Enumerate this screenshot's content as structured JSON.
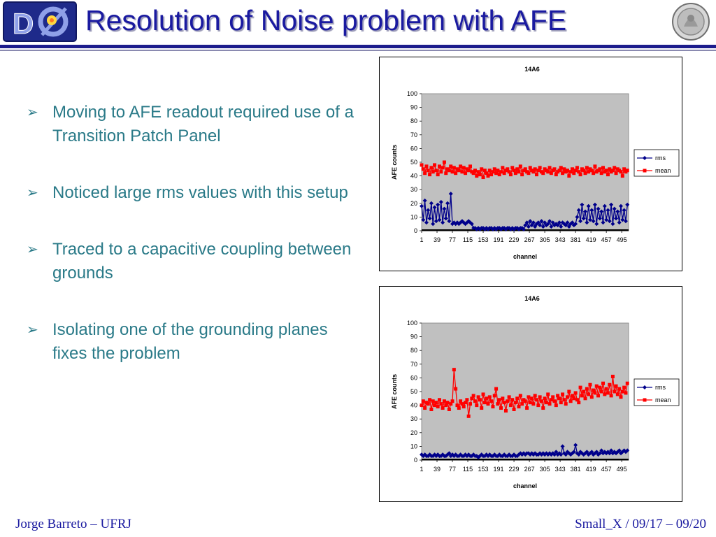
{
  "header": {
    "title": "Resolution of Noise problem with AFE",
    "logo_text": "DØ"
  },
  "bullets": [
    "Moving to AFE readout required use of a Transition Patch Panel",
    "Noticed large rms values with this setup",
    "Traced to a capacitive coupling between grounds",
    "Isolating one of the grounding planes fixes the problem"
  ],
  "footer": {
    "left": "Jorge Barreto – UFRJ",
    "right": "Small_X / 09/17 – 09/20"
  },
  "colors": {
    "accent": "#1a1aa0",
    "bullet_text": "#2a7a88",
    "rms": "#00008b",
    "mean": "#ff0000",
    "plot_bg": "#c0c0c0"
  },
  "chart_data": [
    {
      "type": "line",
      "title": "14A6",
      "xlabel": "channel",
      "ylabel": "AFE counts",
      "ylim": [
        0,
        100
      ],
      "yticks": [
        0,
        10,
        20,
        30,
        40,
        50,
        60,
        70,
        80,
        90,
        100
      ],
      "xticks": [
        "1",
        "39",
        "77",
        "115",
        "153",
        "191",
        "229",
        "267",
        "305",
        "343",
        "381",
        "419",
        "457",
        "495"
      ],
      "xrange": [
        1,
        512
      ],
      "legend": "right",
      "series": [
        {
          "name": "rms",
          "color": "#00008b",
          "marker": "diamond",
          "x": [
            1,
            5,
            9,
            13,
            17,
            21,
            25,
            29,
            33,
            37,
            41,
            45,
            49,
            53,
            57,
            61,
            65,
            69,
            73,
            77,
            81,
            85,
            89,
            93,
            97,
            101,
            105,
            109,
            113,
            117,
            121,
            125,
            129,
            133,
            137,
            141,
            145,
            149,
            153,
            157,
            161,
            165,
            169,
            173,
            177,
            181,
            185,
            189,
            193,
            197,
            201,
            205,
            209,
            213,
            217,
            221,
            225,
            229,
            233,
            237,
            241,
            245,
            249,
            253,
            257,
            261,
            265,
            269,
            273,
            277,
            281,
            285,
            289,
            293,
            297,
            301,
            305,
            309,
            313,
            317,
            321,
            325,
            329,
            333,
            337,
            341,
            345,
            349,
            353,
            357,
            361,
            365,
            369,
            373,
            377,
            381,
            385,
            389,
            393,
            397,
            401,
            405,
            409,
            413,
            417,
            421,
            425,
            429,
            433,
            437,
            441,
            445,
            449,
            453,
            457,
            461,
            465,
            469,
            473,
            477,
            481,
            485,
            489,
            493,
            497,
            501,
            505,
            509
          ],
          "y": [
            18,
            8,
            22,
            6,
            15,
            9,
            20,
            5,
            17,
            7,
            19,
            8,
            21,
            6,
            16,
            9,
            20,
            7,
            27,
            5,
            6,
            5,
            6,
            5,
            6,
            7,
            6,
            5,
            6,
            7,
            6,
            5,
            2,
            2,
            1,
            2,
            1,
            2,
            2,
            1,
            2,
            1,
            2,
            2,
            1,
            2,
            1,
            2,
            2,
            1,
            2,
            2,
            1,
            2,
            2,
            1,
            2,
            1,
            2,
            2,
            1,
            2,
            2,
            1,
            4,
            6,
            3,
            7,
            4,
            6,
            3,
            5,
            6,
            4,
            7,
            3,
            6,
            4,
            5,
            7,
            3,
            6,
            4,
            5,
            4,
            6,
            3,
            6,
            5,
            4,
            6,
            3,
            5,
            6,
            4,
            5,
            10,
            15,
            7,
            19,
            9,
            14,
            6,
            18,
            8,
            15,
            7,
            19,
            5,
            16,
            9,
            14,
            6,
            18,
            8,
            15,
            7,
            19,
            5,
            16,
            9,
            14,
            6,
            18,
            8,
            15,
            7,
            19
          ]
        },
        {
          "name": "mean",
          "color": "#ff0000",
          "marker": "square",
          "x": [
            1,
            5,
            9,
            13,
            17,
            21,
            25,
            29,
            33,
            37,
            41,
            45,
            49,
            53,
            57,
            61,
            65,
            69,
            73,
            77,
            81,
            85,
            89,
            93,
            97,
            101,
            105,
            109,
            113,
            117,
            121,
            125,
            129,
            133,
            137,
            141,
            145,
            149,
            153,
            157,
            161,
            165,
            169,
            173,
            177,
            181,
            185,
            189,
            193,
            197,
            201,
            205,
            209,
            213,
            217,
            221,
            225,
            229,
            233,
            237,
            241,
            245,
            249,
            253,
            257,
            261,
            265,
            269,
            273,
            277,
            281,
            285,
            289,
            293,
            297,
            301,
            305,
            309,
            313,
            317,
            321,
            325,
            329,
            333,
            337,
            341,
            345,
            349,
            353,
            357,
            361,
            365,
            369,
            373,
            377,
            381,
            385,
            389,
            393,
            397,
            401,
            405,
            409,
            413,
            417,
            421,
            425,
            429,
            433,
            437,
            441,
            445,
            449,
            453,
            457,
            461,
            465,
            469,
            473,
            477,
            481,
            485,
            489,
            493,
            497,
            501,
            505,
            509
          ],
          "y": [
            48,
            45,
            42,
            47,
            44,
            41,
            46,
            43,
            48,
            44,
            41,
            47,
            43,
            46,
            50,
            42,
            45,
            44,
            47,
            43,
            46,
            42,
            45,
            44,
            47,
            43,
            46,
            42,
            45,
            44,
            47,
            43,
            42,
            44,
            40,
            43,
            41,
            45,
            39,
            44,
            42,
            40,
            44,
            41,
            43,
            45,
            42,
            44,
            41,
            43,
            46,
            42,
            44,
            45,
            43,
            41,
            46,
            44,
            42,
            45,
            43,
            47,
            41,
            44,
            45,
            43,
            42,
            46,
            44,
            43,
            45,
            41,
            44,
            46,
            43,
            42,
            45,
            44,
            43,
            46,
            42,
            44,
            45,
            41,
            43,
            44,
            46,
            42,
            45,
            43,
            44,
            40,
            43,
            45,
            42,
            44,
            46,
            43,
            41,
            45,
            44,
            42,
            46,
            43,
            45,
            44,
            42,
            47,
            43,
            44,
            45,
            42,
            46,
            43,
            44,
            41,
            45,
            43,
            44,
            46,
            42,
            45,
            44,
            43,
            40,
            45,
            43,
            44
          ]
        }
      ]
    },
    {
      "type": "line",
      "title": "14A6",
      "xlabel": "channel",
      "ylabel": "AFE counts",
      "ylim": [
        0,
        100
      ],
      "yticks": [
        0,
        10,
        20,
        30,
        40,
        50,
        60,
        70,
        80,
        90,
        100
      ],
      "xticks": [
        "1",
        "39",
        "77",
        "115",
        "153",
        "191",
        "229",
        "267",
        "305",
        "343",
        "381",
        "419",
        "457",
        "495"
      ],
      "xrange": [
        1,
        512
      ],
      "legend": "right",
      "series": [
        {
          "name": "rms",
          "color": "#00008b",
          "marker": "diamond",
          "x": [
            1,
            5,
            9,
            13,
            17,
            21,
            25,
            29,
            33,
            37,
            41,
            45,
            49,
            53,
            57,
            61,
            65,
            69,
            73,
            77,
            81,
            85,
            89,
            93,
            97,
            101,
            105,
            109,
            113,
            117,
            121,
            125,
            129,
            133,
            137,
            141,
            145,
            149,
            153,
            157,
            161,
            165,
            169,
            173,
            177,
            181,
            185,
            189,
            193,
            197,
            201,
            205,
            209,
            213,
            217,
            221,
            225,
            229,
            233,
            237,
            241,
            245,
            249,
            253,
            257,
            261,
            265,
            269,
            273,
            277,
            281,
            285,
            289,
            293,
            297,
            301,
            305,
            309,
            313,
            317,
            321,
            325,
            329,
            333,
            337,
            341,
            345,
            349,
            353,
            357,
            361,
            365,
            369,
            373,
            377,
            381,
            385,
            389,
            393,
            397,
            401,
            405,
            409,
            413,
            417,
            421,
            425,
            429,
            433,
            437,
            441,
            445,
            449,
            453,
            457,
            461,
            465,
            469,
            473,
            477,
            481,
            485,
            489,
            493,
            497,
            501,
            505,
            509
          ],
          "y": [
            4,
            3,
            4,
            3,
            3,
            4,
            3,
            3,
            4,
            3,
            4,
            3,
            3,
            4,
            3,
            3,
            4,
            5,
            3,
            4,
            3,
            4,
            3,
            3,
            4,
            3,
            3,
            4,
            3,
            4,
            3,
            3,
            4,
            3,
            3,
            2,
            3,
            4,
            3,
            3,
            4,
            3,
            4,
            3,
            3,
            4,
            3,
            3,
            4,
            3,
            3,
            4,
            3,
            3,
            4,
            3,
            3,
            4,
            3,
            3,
            4,
            5,
            4,
            5,
            4,
            5,
            5,
            4,
            5,
            4,
            5,
            4,
            4,
            5,
            4,
            5,
            4,
            5,
            4,
            5,
            4,
            5,
            4,
            6,
            4,
            5,
            4,
            10,
            5,
            4,
            6,
            5,
            4,
            5,
            6,
            11,
            5,
            4,
            6,
            5,
            4,
            5,
            6,
            4,
            5,
            6,
            4,
            5,
            6,
            4,
            5,
            7,
            5,
            6,
            5,
            6,
            5,
            7,
            5,
            6,
            5,
            6,
            7,
            5,
            6,
            7,
            6,
            7
          ]
        },
        {
          "name": "mean",
          "color": "#ff0000",
          "marker": "square",
          "x": [
            1,
            5,
            9,
            13,
            17,
            21,
            25,
            29,
            33,
            37,
            41,
            45,
            49,
            53,
            57,
            61,
            65,
            69,
            73,
            77,
            81,
            85,
            89,
            93,
            97,
            101,
            105,
            109,
            113,
            117,
            121,
            125,
            129,
            133,
            137,
            141,
            145,
            149,
            153,
            157,
            161,
            165,
            169,
            173,
            177,
            181,
            185,
            189,
            193,
            197,
            201,
            205,
            209,
            213,
            217,
            221,
            225,
            229,
            233,
            237,
            241,
            245,
            249,
            253,
            257,
            261,
            265,
            269,
            273,
            277,
            281,
            285,
            289,
            293,
            297,
            301,
            305,
            309,
            313,
            317,
            321,
            325,
            329,
            333,
            337,
            341,
            345,
            349,
            353,
            357,
            361,
            365,
            369,
            373,
            377,
            381,
            385,
            389,
            393,
            397,
            401,
            405,
            409,
            413,
            417,
            421,
            425,
            429,
            433,
            437,
            441,
            445,
            449,
            453,
            457,
            461,
            465,
            469,
            473,
            477,
            481,
            485,
            489,
            493,
            497,
            501,
            505,
            509
          ],
          "y": [
            40,
            43,
            38,
            42,
            41,
            44,
            37,
            43,
            40,
            42,
            39,
            44,
            41,
            38,
            43,
            40,
            42,
            37,
            41,
            43,
            66,
            52,
            40,
            38,
            43,
            41,
            39,
            42,
            44,
            32,
            41,
            45,
            47,
            43,
            40,
            46,
            44,
            38,
            48,
            42,
            45,
            41,
            46,
            43,
            39,
            47,
            52,
            41,
            44,
            38,
            45,
            42,
            36,
            43,
            46,
            40,
            44,
            37,
            42,
            45,
            39,
            47,
            41,
            44,
            43,
            38,
            46,
            42,
            45,
            41,
            47,
            44,
            40,
            46,
            43,
            38,
            45,
            42,
            48,
            41,
            44,
            46,
            43,
            40,
            47,
            45,
            42,
            48,
            44,
            41,
            46,
            50,
            43,
            47,
            45,
            49,
            44,
            42,
            53,
            47,
            50,
            45,
            52,
            48,
            55,
            46,
            51,
            49,
            54,
            47,
            53,
            50,
            56,
            48,
            52,
            49,
            55,
            47,
            61,
            50,
            54,
            48,
            52,
            46,
            50,
            53,
            49,
            56
          ]
        }
      ]
    }
  ]
}
